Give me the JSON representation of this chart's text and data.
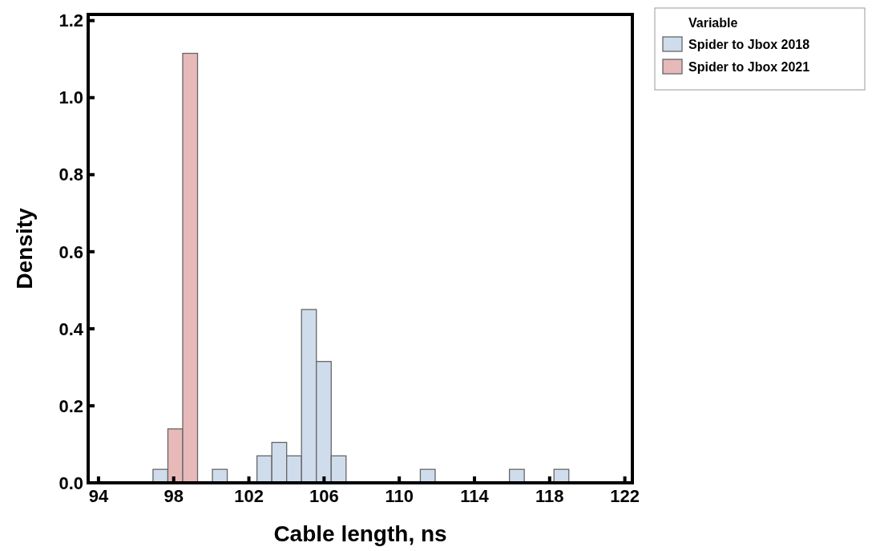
{
  "chart_data": {
    "type": "histogram",
    "xlabel": "Cable length, ns",
    "ylabel": "Density",
    "legend_title": "Variable",
    "legend": "top right",
    "bins": [
      96.9,
      97.69,
      98.48,
      99.27,
      100.06,
      100.85,
      101.64,
      102.43,
      103.22,
      104.01,
      104.8,
      105.59,
      106.38,
      107.17,
      107.96,
      108.75,
      109.54,
      110.33,
      111.12,
      111.91,
      112.7,
      113.49,
      114.28,
      115.07,
      115.86,
      116.65,
      117.44,
      118.23,
      119.02
    ],
    "series": [
      {
        "name": "Spider to Jbox 2018",
        "color": "#cfdcec",
        "values": [
          0.035,
          0,
          0,
          0,
          0.035,
          0,
          0,
          0.07,
          0.105,
          0.07,
          0.45,
          0.315,
          0.07,
          0,
          0,
          0,
          0,
          0,
          0.035,
          0,
          0,
          0,
          0,
          0,
          0.035,
          0,
          0,
          0.035
        ]
      },
      {
        "name": "Spider to Jbox 2021",
        "color": "#e8b9b9",
        "values": [
          0,
          0.14,
          1.115,
          0,
          0,
          0,
          0,
          0,
          0,
          0,
          0,
          0,
          0,
          0,
          0,
          0,
          0,
          0,
          0,
          0,
          0,
          0,
          0,
          0,
          0,
          0,
          0,
          0
        ]
      }
    ],
    "xlim": [
      93.45,
      122.4
    ],
    "xticks": [
      94,
      98,
      102,
      106,
      110,
      114,
      118,
      122
    ],
    "ylim": [
      0,
      1.216
    ],
    "yticks": [
      {
        "value": 0,
        "label": "0.0"
      },
      {
        "value": 0.2,
        "label": "0.2"
      },
      {
        "value": 0.4,
        "label": "0.4"
      },
      {
        "value": 0.6,
        "label": "0.6"
      },
      {
        "value": 0.8,
        "label": "0.8"
      },
      {
        "value": 1,
        "label": "1.0"
      },
      {
        "value": 1.2,
        "label": "1.2"
      }
    ],
    "grid": false
  }
}
